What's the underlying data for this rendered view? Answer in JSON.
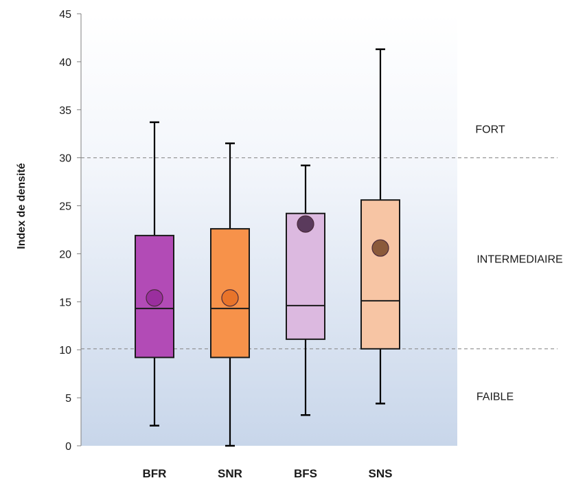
{
  "chart_data": {
    "type": "boxplot",
    "ylabel": "Index de densité",
    "ylim": [
      0,
      45
    ],
    "yticks": [
      0,
      5,
      10,
      15,
      20,
      25,
      30,
      35,
      40,
      45
    ],
    "categories": [
      "BFR",
      "SNR",
      "BFS",
      "SNS"
    ],
    "boxes": [
      {
        "name": "BFR",
        "min": 2.1,
        "q1": 9.2,
        "median": 14.3,
        "q3": 21.9,
        "max": 33.7,
        "mean": 15.4,
        "color": "#b24bb6",
        "mean_color": "#9a2f9e"
      },
      {
        "name": "SNR",
        "min": 0.0,
        "q1": 9.2,
        "median": 14.3,
        "q3": 22.6,
        "max": 31.5,
        "mean": 15.4,
        "color": "#f7924a",
        "mean_color": "#e8742a"
      },
      {
        "name": "BFS",
        "min": 3.2,
        "q1": 11.1,
        "median": 14.6,
        "q3": 24.2,
        "max": 29.2,
        "mean": 23.1,
        "color": "#dcb9e0",
        "mean_color": "#5a3a5c"
      },
      {
        "name": "SNS",
        "min": 4.4,
        "q1": 10.1,
        "median": 15.1,
        "q3": 25.6,
        "max": 41.3,
        "mean": 20.6,
        "color": "#f7c5a4",
        "mean_color": "#8b5a3a"
      }
    ],
    "thresholds": [
      10.1,
      30.0
    ],
    "zones": [
      {
        "label": "FORT",
        "y": 33
      },
      {
        "label": "INTERMEDIAIRE",
        "y": 19.5
      },
      {
        "label": "FAIBLE",
        "y": 5.2
      }
    ],
    "grid": false,
    "legend": "none"
  }
}
